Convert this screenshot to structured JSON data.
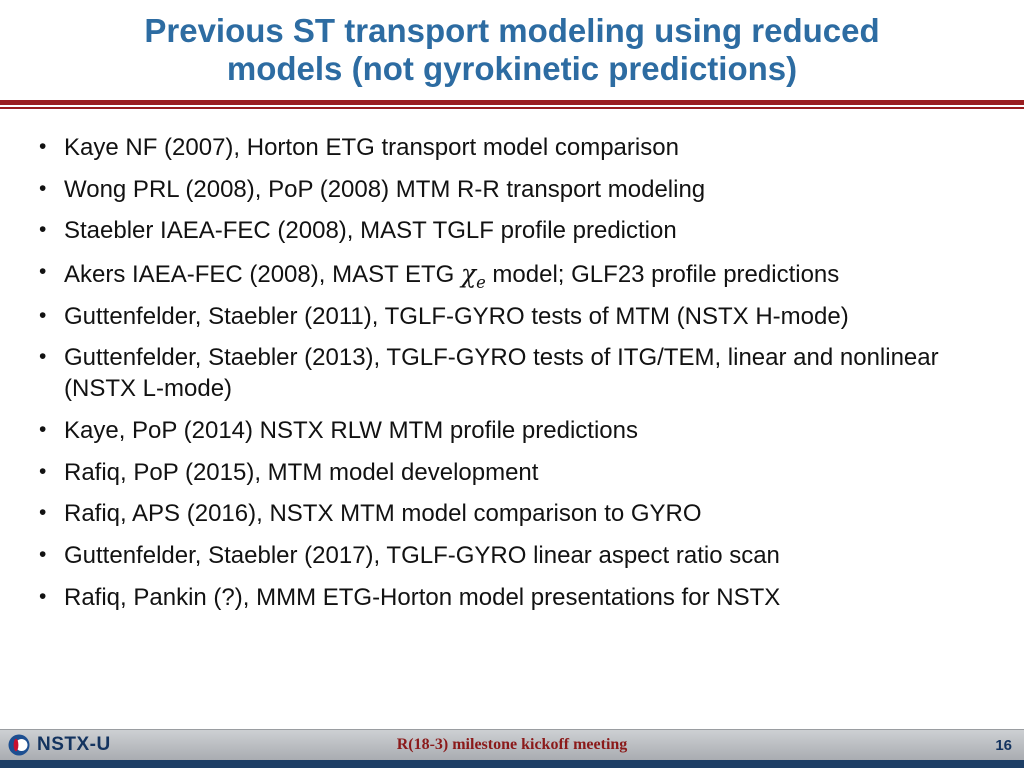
{
  "title": {
    "line1": "Previous ST transport modeling using reduced",
    "line2": "models (not gyrokinetic predictions)"
  },
  "bullets": [
    {
      "segments": [
        {
          "text": "Kaye NF (2007), Horton ETG transport model comparison",
          "kind": "plain"
        }
      ]
    },
    {
      "segments": [
        {
          "text": "Wong PRL (2008), PoP (2008) MTM R-R transport modeling",
          "kind": "plain"
        }
      ]
    },
    {
      "segments": [
        {
          "text": "Staebler IAEA-FEC (2008), MAST TGLF profile prediction",
          "kind": "plain"
        }
      ]
    },
    {
      "segments": [
        {
          "text": "Akers IAEA-FEC (2008), MAST ETG ",
          "kind": "plain"
        },
        {
          "text": "χ",
          "kind": "greek"
        },
        {
          "text": "e",
          "kind": "sub"
        },
        {
          "text": " model; GLF23 profile predictions",
          "kind": "plain"
        }
      ]
    },
    {
      "segments": [
        {
          "text": "Guttenfelder, Staebler (2011), TGLF-GYRO tests of MTM (NSTX H-mode)",
          "kind": "plain"
        }
      ]
    },
    {
      "segments": [
        {
          "text": "Guttenfelder, Staebler (2013), TGLF-GYRO tests of ITG/TEM, linear and nonlinear (NSTX L-mode)",
          "kind": "plain"
        }
      ]
    },
    {
      "segments": [
        {
          "text": "Kaye, PoP (2014) NSTX RLW MTM profile predictions",
          "kind": "plain"
        }
      ]
    },
    {
      "segments": [
        {
          "text": "Rafiq, PoP (2015), MTM model development",
          "kind": "plain"
        }
      ]
    },
    {
      "segments": [
        {
          "text": "Rafiq, APS (2016), NSTX MTM model comparison to GYRO",
          "kind": "plain"
        }
      ]
    },
    {
      "segments": [
        {
          "text": "Guttenfelder, Staebler (2017), TGLF-GYRO linear aspect ratio scan",
          "kind": "plain"
        }
      ]
    },
    {
      "segments": [
        {
          "text": "Rafiq, Pankin (?), MMM ETG-Horton model presentations for NSTX",
          "kind": "plain"
        }
      ]
    }
  ],
  "footer": {
    "logo_text": "NSTX-U",
    "meeting": "R(18-3) milestone kickoff meeting",
    "page_number": "16"
  },
  "colors": {
    "title_blue": "#2d6ca2",
    "rule_red": "#9a1d20",
    "footer_navy": "#13335f",
    "footer_maroon": "#8b1a1a",
    "bottom_strip_navy": "#1e3f66",
    "footer_bar_gray": "#b4b7bb"
  }
}
